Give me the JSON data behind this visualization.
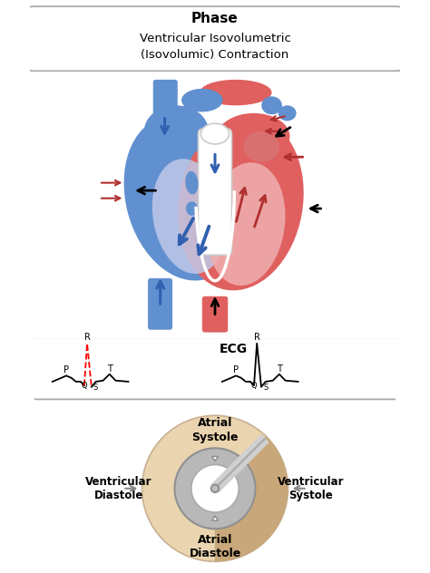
{
  "title_bold": "Phase",
  "title_text": "Ventricular Isovolumetric\n(Isovolumic) Contraction",
  "ecg_title": "ECG",
  "dial_labels": {
    "top": "Atrial\nSystole",
    "left": "Ventricular\nDiastole",
    "right": "Ventricular\nSystole",
    "bottom": "Atrial\nDiastole"
  },
  "bg_color": "#ffffff",
  "heart_red": "#e06060",
  "heart_red_dark": "#c84040",
  "heart_blue": "#6090d0",
  "heart_blue_dark": "#3060a0",
  "heart_pink": "#f0b0b0",
  "heart_lavender": "#c0c8e8",
  "dial_outer_color": "#ead5b0",
  "dial_sector_color": "#c8a87a",
  "dial_ring_outer": "#b0b0b0",
  "dial_ring_mid": "#cccccc",
  "needle_color": "#d0d0d0",
  "needle_edge": "#aaaaaa"
}
